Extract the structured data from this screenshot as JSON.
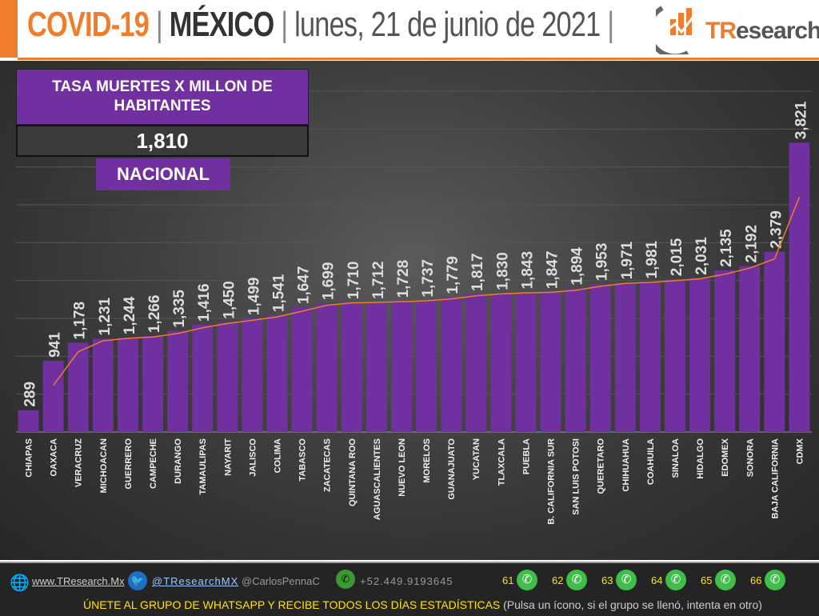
{
  "header": {
    "title_covid": "COVID-19",
    "separator": "|",
    "title_country": "MÉXICO",
    "date": "lunes, 21 de junio de 2021",
    "logo": "TResearch"
  },
  "box": {
    "title": "TASA MUERTES X MILLON DE HABITANTES",
    "value": "1,810",
    "label": "NACIONAL"
  },
  "chart_data": {
    "type": "bar",
    "categories": [
      "CHIAPAS",
      "OAXACA",
      "VERACRUZ",
      "MICHOACAN",
      "GUERRERO",
      "CAMPECHE",
      "DURANGO",
      "TAMAULIPAS",
      "NAYARIT",
      "JALISCO",
      "COLIMA",
      "TABASCO",
      "ZACATECAS",
      "QUINTANA ROO",
      "AGUASCALIENTES",
      "NUEVO LEON",
      "MORELOS",
      "GUANAJUATO",
      "YUCATAN",
      "TLAXCALA",
      "PUEBLA",
      "B. CALIFORNIA SUR",
      "SAN LUIS POTOSI",
      "QUERETARO",
      "CHIHUAHUA",
      "COAHUILA",
      "SINALOA",
      "HIDALGO",
      "EDOMEX",
      "SONORA",
      "BAJA CALIFORNIA",
      "CDMX"
    ],
    "values": [
      289,
      941,
      1178,
      1231,
      1244,
      1266,
      1335,
      1416,
      1450,
      1499,
      1541,
      1647,
      1699,
      1710,
      1712,
      1728,
      1737,
      1779,
      1817,
      1830,
      1843,
      1847,
      1894,
      1953,
      1971,
      1981,
      2015,
      2031,
      2135,
      2192,
      2379,
      3821
    ],
    "ylim": [
      0,
      4500
    ],
    "grid": true,
    "trendline": "2-period moving average",
    "colors": {
      "bar": "#7030a0",
      "trend": "#ee7d2c",
      "label": "#dddddd"
    }
  },
  "footer": {
    "web": "www.TResearch.Mx",
    "twitter": "@TResearchMX",
    "author": "@CarlosPennaC",
    "phone": "+52.449.9193645",
    "groups": [
      "61",
      "62",
      "63",
      "64",
      "65",
      "66"
    ],
    "cta": "ÚNETE AL GRUPO DE WHATSAPP Y RECIBE TODOS LOS DÍAS ESTADÍSTICAS",
    "cta_note": "(Pulsa un ícono, si el grupo se llenó, intenta en otro)"
  }
}
